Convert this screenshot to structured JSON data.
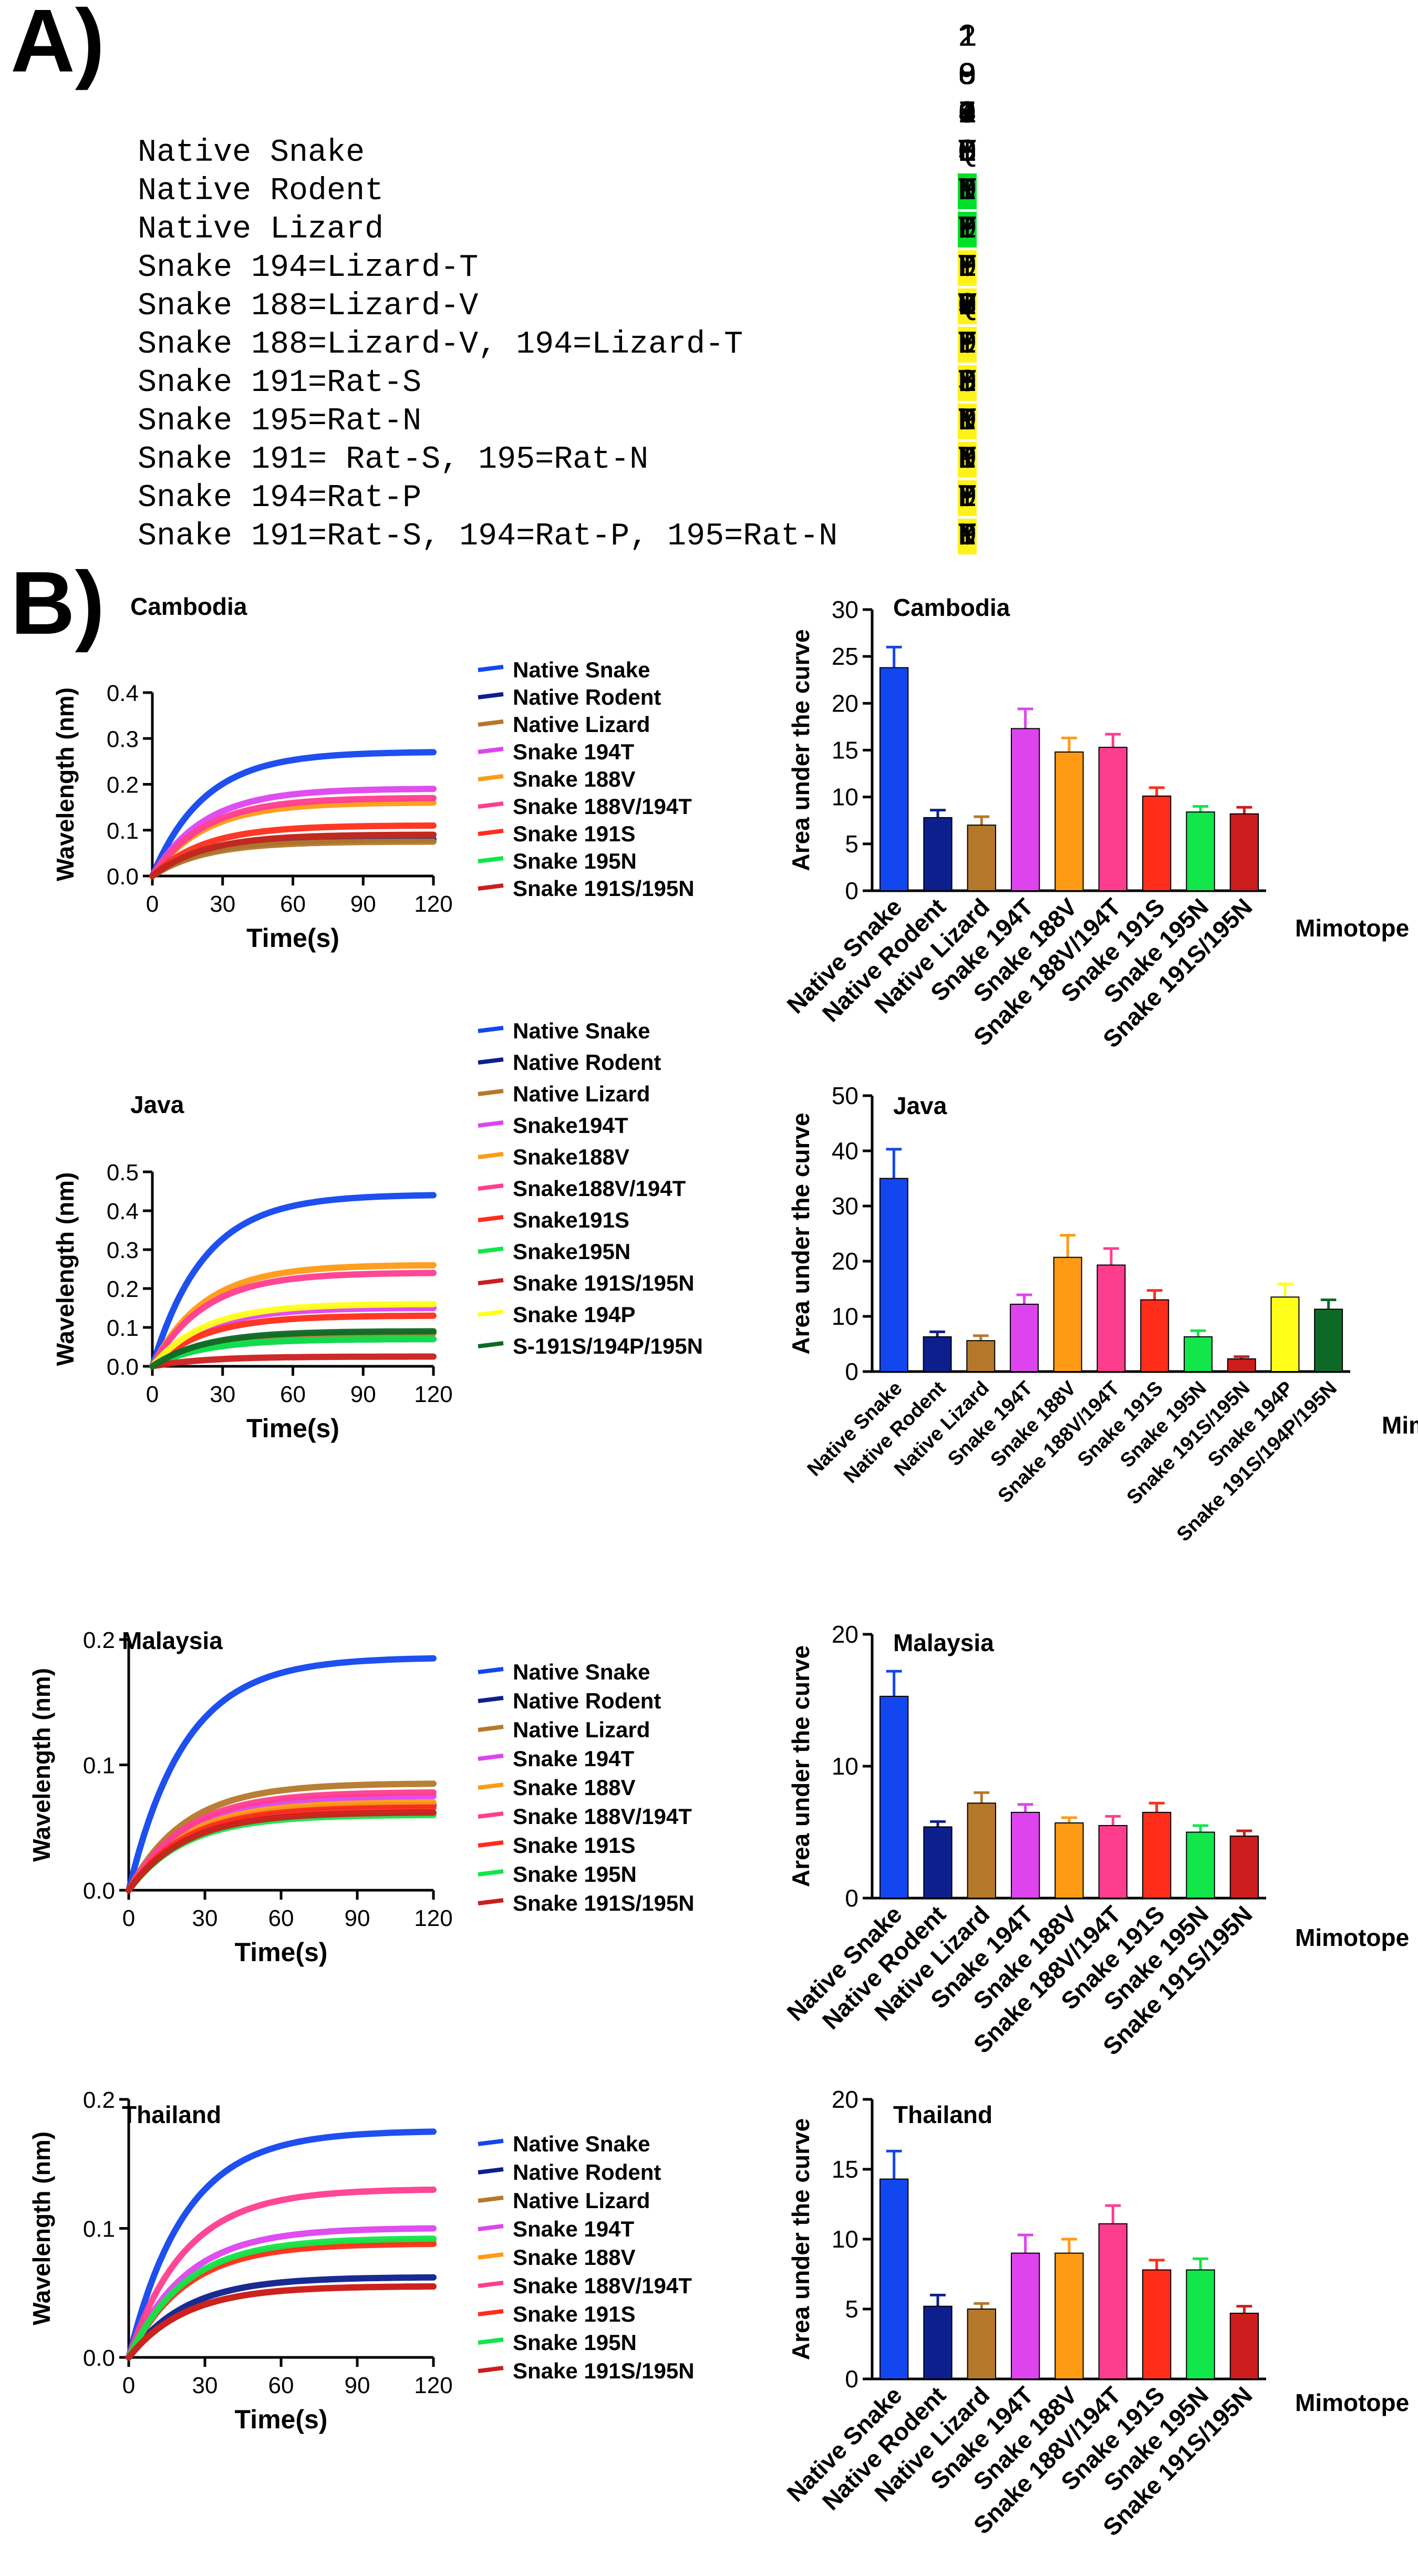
{
  "panelA": {
    "label": "A)",
    "position_digits": [
      "11111111111112",
      "88899999999990",
      "78901234567890"
    ],
    "rows": [
      {
        "label": "Native Snake",
        "seq": "SEQYDSSLETPYLD",
        "hl": []
      },
      {
        "label": "Native Rodent",
        "seq": "WVFYSSSPNTPYLD",
        "hl": [
          [
            "green",
            0
          ],
          [
            "green",
            1
          ],
          [
            "green",
            2
          ],
          [
            "green",
            4
          ],
          [
            "green",
            7
          ],
          [
            "green",
            8
          ]
        ]
      },
      {
        "label": "Native Lizard",
        "seq": "WVVYASSTETPYLD",
        "hl": [
          [
            "green",
            0
          ],
          [
            "green",
            1
          ],
          [
            "green",
            2
          ],
          [
            "green",
            4
          ],
          [
            "green",
            7
          ]
        ]
      },
      {
        "label": "Snake 194=Lizard-T",
        "seq": "SEQYDSSTETPYLD",
        "hl": [
          [
            "yellow",
            7
          ]
        ]
      },
      {
        "label": "Snake 188=Lizard-V",
        "seq": "SVQYDSSLETPYLD",
        "hl": [
          [
            "yellow",
            1
          ]
        ]
      },
      {
        "label": "Snake 188=Lizard-V, 194=Lizard-T",
        "seq": "SVQYDSSTETPYLD",
        "hl": [
          [
            "yellow",
            1
          ],
          [
            "yellow",
            7
          ]
        ]
      },
      {
        "label": "Snake 191=Rat-S",
        "seq": "SEQYSSSLETPYLD",
        "hl": [
          [
            "yellow",
            4
          ]
        ]
      },
      {
        "label": "Snake 195=Rat-N",
        "seq": "SEQYDSSLNTPYLD",
        "hl": [
          [
            "yellow",
            8
          ]
        ]
      },
      {
        "label": "Snake 191= Rat-S, 195=Rat-N",
        "seq": "SEQYSSSLNTPYLD",
        "hl": [
          [
            "yellow",
            4
          ],
          [
            "yellow",
            8
          ]
        ]
      },
      {
        "label": "Snake 194=Rat-P",
        "seq": "SEQYDSSPETPYLD",
        "hl": [
          [
            "yellow",
            7
          ]
        ]
      },
      {
        "label": "Snake 191=Rat-S, 194=Rat-P, 195=Rat-N",
        "seq": "SEQYSSSPNTPYLD",
        "hl": [
          [
            "yellow",
            4
          ],
          [
            "yellow",
            7
          ],
          [
            "yellow",
            8
          ]
        ]
      }
    ]
  },
  "panelB": {
    "label": "B)"
  },
  "colors": {
    "native_snake": "#1246ee",
    "native_rodent": "#0d1f8c",
    "native_lizard": "#b5782a",
    "s194t": "#dd44ee",
    "s188v": "#ff9a14",
    "s188v194t": "#ff3d8f",
    "s191s": "#ff2d1a",
    "s195n": "#11e64a",
    "s191s195n": "#cc1d1d",
    "s194p": "#ffff19",
    "s191s194p195n": "#0d6a26"
  },
  "chart_data": [
    {
      "type": "line",
      "region": "Cambodia",
      "title": "Cambodia",
      "xlabel": "Time(s)",
      "ylabel": "Wavelength (nm)",
      "xlim": [
        0,
        120
      ],
      "ylim": [
        0,
        0.4
      ],
      "xticks": [
        "0",
        "30",
        "60",
        "90",
        "120"
      ],
      "yticks": [
        "0.0",
        "0.1",
        "0.2",
        "0.3",
        "0.4"
      ],
      "series": [
        {
          "name": "Native Snake",
          "color_key": "native_snake",
          "final": 0.27
        },
        {
          "name": "Native Rodent",
          "color_key": "native_rodent",
          "final": 0.08
        },
        {
          "name": "Native Lizard",
          "color_key": "native_lizard",
          "final": 0.075
        },
        {
          "name": "Snake 194T",
          "color_key": "s194t",
          "final": 0.19
        },
        {
          "name": "Snake 188V",
          "color_key": "s188v",
          "final": 0.16
        },
        {
          "name": "Snake 188V/194T",
          "color_key": "s188v194t",
          "final": 0.17
        },
        {
          "name": "Snake 191S",
          "color_key": "s191s",
          "final": 0.11
        },
        {
          "name": "Snake 195N",
          "color_key": "s195n",
          "final": 0.09
        },
        {
          "name": "Snake 191S/195N",
          "color_key": "s191s195n",
          "final": 0.09
        }
      ]
    },
    {
      "type": "bar",
      "region": "Cambodia",
      "title": "Cambodia",
      "xlabel": "Mimotope",
      "ylabel": "Area under the curve",
      "ylim": [
        0,
        30
      ],
      "yticks": [
        "0",
        "5",
        "10",
        "15",
        "20",
        "25",
        "30"
      ],
      "categories": [
        "Native Snake",
        "Native Rodent",
        "Native Lizard",
        "Snake 194T",
        "Snake 188V",
        "Snake 188V/194T",
        "Snake 191S",
        "Snake 195N",
        "Snake 191S/195N"
      ],
      "values": [
        23.8,
        7.8,
        7.0,
        17.3,
        14.8,
        15.3,
        10.1,
        8.4,
        8.2
      ],
      "errors": [
        2.2,
        0.8,
        0.9,
        2.1,
        1.5,
        1.4,
        0.9,
        0.6,
        0.7
      ],
      "color_keys": [
        "native_snake",
        "native_rodent",
        "native_lizard",
        "s194t",
        "s188v",
        "s188v194t",
        "s191s",
        "s195n",
        "s191s195n"
      ]
    },
    {
      "type": "line",
      "region": "Java",
      "title": "Java",
      "xlabel": "Time(s)",
      "ylabel": "Wavelength (nm)",
      "xlim": [
        0,
        120
      ],
      "ylim": [
        0,
        0.5
      ],
      "xticks": [
        "0",
        "30",
        "60",
        "90",
        "120"
      ],
      "yticks": [
        "0.0",
        "0.1",
        "0.2",
        "0.3",
        "0.4",
        "0.5"
      ],
      "series": [
        {
          "name": "Native Snake",
          "color_key": "native_snake",
          "final": 0.44
        },
        {
          "name": "Native Rodent",
          "color_key": "native_rodent",
          "final": 0.07
        },
        {
          "name": "Native Lizard",
          "color_key": "native_lizard",
          "final": 0.085
        },
        {
          "name": "Snake194T",
          "color_key": "s194t",
          "final": 0.15
        },
        {
          "name": "Snake188V",
          "color_key": "s188v",
          "final": 0.26
        },
        {
          "name": "Snake188V/194T",
          "color_key": "s188v194t",
          "final": 0.24
        },
        {
          "name": "Snake191S",
          "color_key": "s191s",
          "final": 0.13
        },
        {
          "name": "Snake195N",
          "color_key": "s195n",
          "final": 0.07
        },
        {
          "name": "Snake 191S/195N",
          "color_key": "s191s195n",
          "final": 0.025
        },
        {
          "name": "Snake 194P",
          "color_key": "s194p",
          "final": 0.16
        },
        {
          "name": "S-191S/194P/195N",
          "color_key": "s191s194p195n",
          "final": 0.09
        }
      ]
    },
    {
      "type": "bar",
      "region": "Java",
      "title": "Java",
      "xlabel": "Mimotope",
      "ylabel": "Area under the curve",
      "ylim": [
        0,
        50
      ],
      "yticks": [
        "0",
        "10",
        "20",
        "30",
        "40",
        "50"
      ],
      "categories": [
        "Native Snake",
        "Native Rodent",
        "Native Lizard",
        "Snake 194T",
        "Snake 188V",
        "Snake 188V/194T",
        "Snake 191S",
        "Snake 195N",
        "Snake 191S/195N",
        "Snake 194P",
        "Snake 191S/194P/195N"
      ],
      "values": [
        35.0,
        6.3,
        5.6,
        12.2,
        20.7,
        19.3,
        13.0,
        6.3,
        2.3,
        13.5,
        11.3
      ],
      "errors": [
        5.3,
        0.9,
        0.9,
        1.7,
        4.0,
        3.0,
        1.7,
        1.1,
        0.4,
        2.4,
        1.7
      ],
      "color_keys": [
        "native_snake",
        "native_rodent",
        "native_lizard",
        "s194t",
        "s188v",
        "s188v194t",
        "s191s",
        "s195n",
        "s191s195n",
        "s194p",
        "s191s194p195n"
      ]
    },
    {
      "type": "line",
      "region": "Malaysia",
      "title": "Malaysia",
      "xlabel": "Time(s)",
      "ylabel": "Wavelength (nm)",
      "xlim": [
        0,
        120
      ],
      "ylim": [
        0,
        0.2
      ],
      "xticks": [
        "0",
        "30",
        "60",
        "90",
        "120"
      ],
      "yticks": [
        "0.0",
        "0.1",
        "0.2"
      ],
      "series": [
        {
          "name": "Native Snake",
          "color_key": "native_snake",
          "final": 0.185
        },
        {
          "name": "Native Rodent",
          "color_key": "native_rodent",
          "final": 0.068
        },
        {
          "name": "Native Lizard",
          "color_key": "native_lizard",
          "final": 0.085
        },
        {
          "name": "Snake 194T",
          "color_key": "s194t",
          "final": 0.075
        },
        {
          "name": "Snake 188V",
          "color_key": "s188v",
          "final": 0.07
        },
        {
          "name": "Snake 188V/194T",
          "color_key": "s188v194t",
          "final": 0.078
        },
        {
          "name": "Snake 191S",
          "color_key": "s191s",
          "final": 0.066
        },
        {
          "name": "Snake 195N",
          "color_key": "s195n",
          "final": 0.06
        },
        {
          "name": "Snake 191S/195N",
          "color_key": "s191s195n",
          "final": 0.062
        }
      ]
    },
    {
      "type": "bar",
      "region": "Malaysia",
      "title": "Malaysia",
      "xlabel": "Mimotope",
      "ylabel": "Area under the curve",
      "ylim": [
        0,
        20
      ],
      "yticks": [
        "0",
        "10",
        "20"
      ],
      "categories": [
        "Native Snake",
        "Native Rodent",
        "Native Lizard",
        "Snake 194T",
        "Snake 188V",
        "Snake 188V/194T",
        "Snake 191S",
        "Snake 195N",
        "Snake 191S/195N"
      ],
      "values": [
        15.3,
        5.4,
        7.2,
        6.5,
        5.7,
        5.5,
        6.5,
        5.0,
        4.7
      ],
      "errors": [
        1.9,
        0.4,
        0.8,
        0.6,
        0.4,
        0.7,
        0.7,
        0.5,
        0.4
      ],
      "color_keys": [
        "native_snake",
        "native_rodent",
        "native_lizard",
        "s194t",
        "s188v",
        "s188v194t",
        "s191s",
        "s195n",
        "s191s195n"
      ]
    },
    {
      "type": "line",
      "region": "Thailand",
      "title": "Thailand",
      "xlabel": "Time(s)",
      "ylabel": "Wavelength (nm)",
      "xlim": [
        0,
        120
      ],
      "ylim": [
        0,
        0.2
      ],
      "xticks": [
        "0",
        "30",
        "60",
        "90",
        "120"
      ],
      "yticks": [
        "0.0",
        "0.1",
        "0.2"
      ],
      "series": [
        {
          "name": "Native Snake",
          "color_key": "native_snake",
          "final": 0.175
        },
        {
          "name": "Native Rodent",
          "color_key": "native_rodent",
          "final": 0.062
        },
        {
          "name": "Native Lizard",
          "color_key": "native_lizard",
          "final": 0.055
        },
        {
          "name": "Snake 194T",
          "color_key": "s194t",
          "final": 0.1
        },
        {
          "name": "Snake 188V",
          "color_key": "s188v",
          "final": 0.09
        },
        {
          "name": "Snake 188V/194T",
          "color_key": "s188v194t",
          "final": 0.13
        },
        {
          "name": "Snake 191S",
          "color_key": "s191s",
          "final": 0.088
        },
        {
          "name": "Snake 195N",
          "color_key": "s195n",
          "final": 0.092
        },
        {
          "name": "Snake 191S/195N",
          "color_key": "s191s195n",
          "final": 0.055
        }
      ]
    },
    {
      "type": "bar",
      "region": "Thailand",
      "title": "Thailand",
      "xlabel": "Mimotope",
      "ylabel": "Area under the curve",
      "ylim": [
        0,
        20
      ],
      "yticks": [
        "0",
        "5",
        "10",
        "15",
        "20"
      ],
      "categories": [
        "Native Snake",
        "Native Rodent",
        "Native Lizard",
        "Snake 194T",
        "Snake 188V",
        "Snake 188V/194T",
        "Snake 191S",
        "Snake 195N",
        "Snake 191S/195N"
      ],
      "values": [
        14.3,
        5.2,
        5.0,
        9.0,
        9.0,
        11.1,
        7.8,
        7.8,
        4.7
      ],
      "errors": [
        2.0,
        0.8,
        0.4,
        1.3,
        1.0,
        1.3,
        0.7,
        0.8,
        0.5
      ],
      "color_keys": [
        "native_snake",
        "native_rodent",
        "native_lizard",
        "s194t",
        "s188v",
        "s188v194t",
        "s191s",
        "s195n",
        "s191s195n"
      ]
    }
  ]
}
